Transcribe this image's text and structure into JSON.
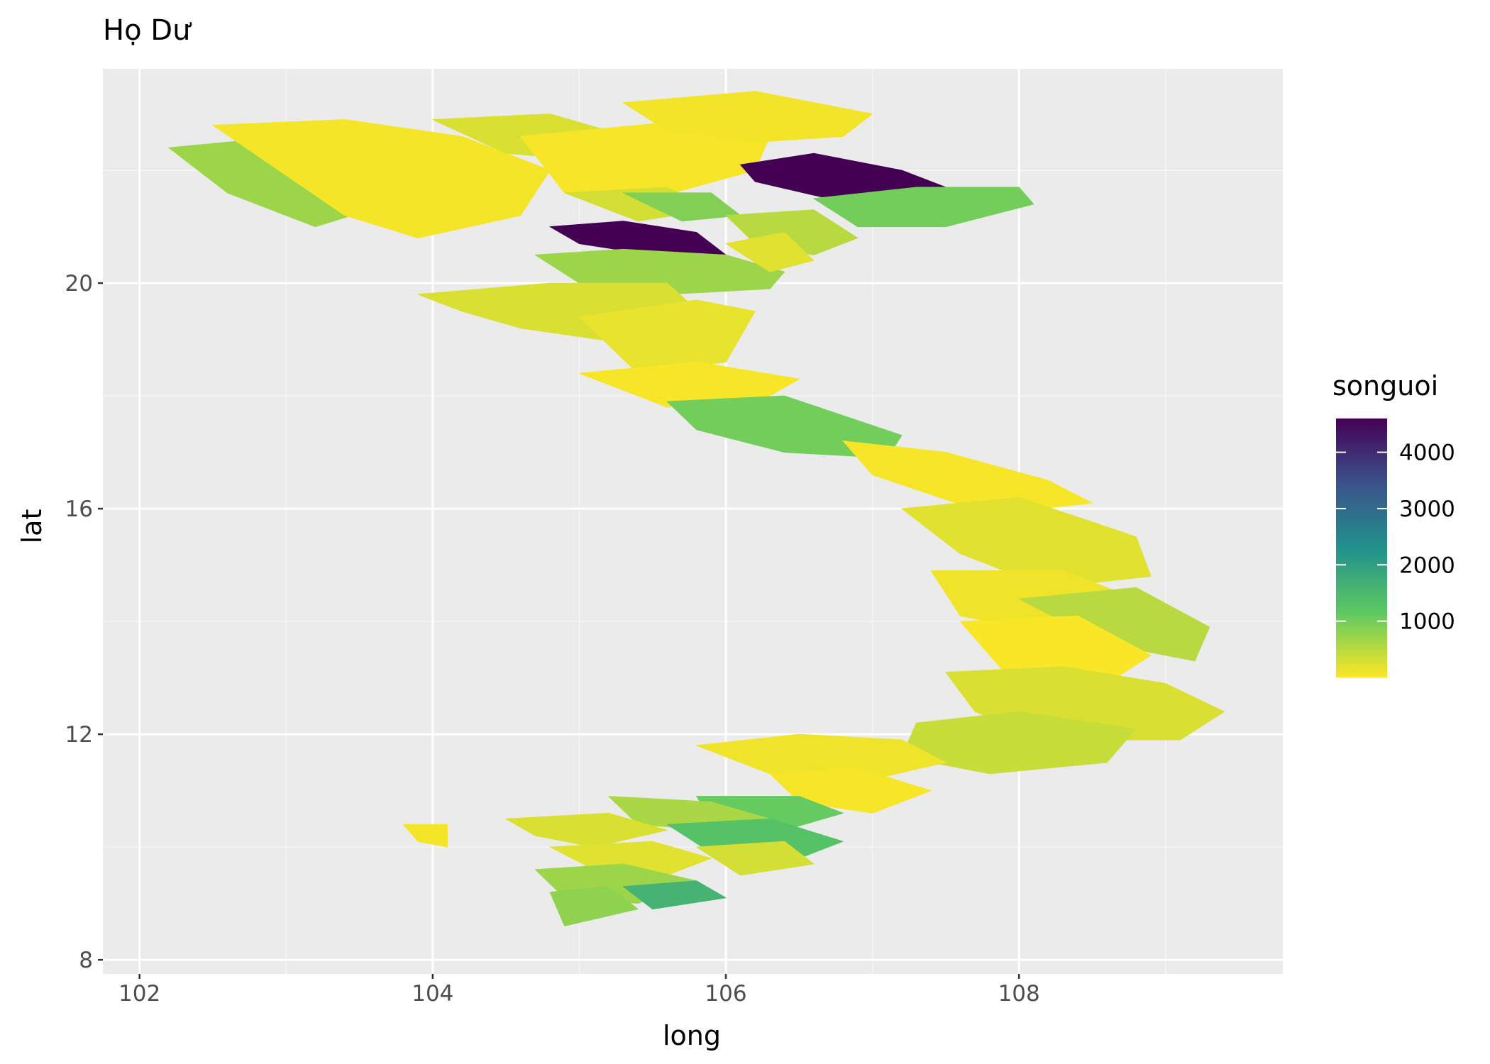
{
  "title": "Họ Dư",
  "xlabel": "long",
  "ylabel": "lat",
  "x_ticks": [
    {
      "value": 102,
      "label": "102"
    },
    {
      "value": 104,
      "label": "104"
    },
    {
      "value": 106,
      "label": "106"
    },
    {
      "value": 108,
      "label": "108"
    }
  ],
  "y_ticks": [
    {
      "value": 8,
      "label": "8"
    },
    {
      "value": 12,
      "label": "12"
    },
    {
      "value": 16,
      "label": "16"
    },
    {
      "value": 20,
      "label": "20"
    }
  ],
  "legend": {
    "title": "songuoi",
    "ticks": [
      {
        "value": 4000,
        "label": "4000"
      },
      {
        "value": 3000,
        "label": "3000"
      },
      {
        "value": 2000,
        "label": "2000"
      },
      {
        "value": 1000,
        "label": "1000"
      }
    ],
    "range": [
      0,
      4600
    ],
    "palette": [
      "#fde725",
      "#5ec962",
      "#21918c",
      "#3b528b",
      "#440154"
    ]
  },
  "colors": {
    "panel_background": "#ebebeb",
    "grid_major": "#ffffff",
    "grid_minor": "#f5f5f5",
    "high": "#440154",
    "low": "#fde725"
  },
  "chart_data": {
    "type": "choropleth",
    "title": "Họ Dư",
    "xlabel": "long",
    "ylabel": "lat",
    "xlim": [
      101.75,
      109.8
    ],
    "ylim": [
      7.75,
      23.8
    ],
    "fill_variable": "songuoi",
    "regions": [
      {
        "lon": [
          102.2,
          103.0,
          103.6,
          104.1,
          103.7,
          103.2,
          102.6
        ],
        "lat": [
          22.4,
          22.6,
          22.5,
          22.0,
          21.4,
          21.0,
          21.6
        ],
        "value": 700
      },
      {
        "lon": [
          102.5,
          103.4,
          104.2,
          104.8,
          104.6,
          103.9,
          103.4
        ],
        "lat": [
          22.8,
          22.9,
          22.6,
          22.0,
          21.2,
          20.8,
          21.2
        ],
        "value": 60
      },
      {
        "lon": [
          104.0,
          104.8,
          105.2,
          105.0,
          104.5
        ],
        "lat": [
          22.9,
          23.0,
          22.7,
          22.2,
          22.3
        ],
        "value": 250
      },
      {
        "lon": [
          104.6,
          105.4,
          105.8,
          106.3,
          106.2,
          105.5,
          104.9
        ],
        "lat": [
          22.6,
          22.8,
          22.9,
          22.6,
          22.0,
          21.5,
          21.6
        ],
        "value": 40
      },
      {
        "lon": [
          105.3,
          106.2,
          107.0,
          106.8,
          106.2,
          105.6
        ],
        "lat": [
          23.2,
          23.4,
          23.0,
          22.6,
          22.5,
          22.7
        ],
        "value": 80
      },
      {
        "lon": [
          104.9,
          105.6,
          105.9,
          105.4
        ],
        "lat": [
          21.6,
          21.7,
          21.3,
          21.1
        ],
        "value": 300
      },
      {
        "lon": [
          105.3,
          105.9,
          106.1,
          105.7
        ],
        "lat": [
          21.6,
          21.6,
          21.2,
          21.1
        ],
        "value": 900
      },
      {
        "lon": [
          106.1,
          106.6,
          107.2,
          107.6,
          107.1,
          106.7,
          106.2
        ],
        "lat": [
          22.1,
          22.3,
          22.0,
          21.6,
          21.4,
          21.5,
          21.8
        ],
        "value": 4600
      },
      {
        "lon": [
          106.6,
          107.3,
          108.0,
          108.1,
          107.5,
          106.9
        ],
        "lat": [
          21.5,
          21.7,
          21.7,
          21.4,
          21.0,
          21.0
        ],
        "value": 1000
      },
      {
        "lon": [
          104.8,
          105.3,
          105.8,
          106.0,
          105.5,
          105.0
        ],
        "lat": [
          21.0,
          21.1,
          20.9,
          20.5,
          20.5,
          20.7
        ],
        "value": 4600
      },
      {
        "lon": [
          104.7,
          105.3,
          106.0,
          106.4,
          106.3,
          105.6,
          105.0
        ],
        "lat": [
          20.5,
          20.6,
          20.5,
          20.2,
          19.9,
          19.8,
          20.0
        ],
        "value": 700
      },
      {
        "lon": [
          106.0,
          106.6,
          106.9,
          106.6,
          106.2
        ],
        "lat": [
          21.2,
          21.3,
          20.8,
          20.5,
          20.7
        ],
        "value": 500
      },
      {
        "lon": [
          106.0,
          106.4,
          106.6,
          106.3
        ],
        "lat": [
          20.7,
          20.9,
          20.4,
          20.2
        ],
        "value": 200
      },
      {
        "lon": [
          103.9,
          104.8,
          105.6,
          105.9,
          105.4,
          104.6,
          104.2
        ],
        "lat": [
          19.8,
          20.0,
          20.0,
          19.3,
          18.9,
          19.2,
          19.5
        ],
        "value": 250
      },
      {
        "lon": [
          105.0,
          105.8,
          106.2,
          106.0,
          105.4
        ],
        "lat": [
          19.4,
          19.7,
          19.5,
          18.6,
          18.4
        ],
        "value": 150
      },
      {
        "lon": [
          105.0,
          105.8,
          106.5,
          106.3,
          105.6
        ],
        "lat": [
          18.4,
          18.6,
          18.3,
          18.0,
          17.8
        ],
        "value": 40
      },
      {
        "lon": [
          105.6,
          106.4,
          107.2,
          107.1,
          106.4,
          105.8
        ],
        "lat": [
          17.9,
          18.0,
          17.3,
          16.9,
          17.0,
          17.4
        ],
        "value": 1000
      },
      {
        "lon": [
          106.8,
          107.5,
          108.2,
          108.5,
          107.8,
          107.0
        ],
        "lat": [
          17.2,
          17.0,
          16.5,
          16.1,
          15.9,
          16.6
        ],
        "value": 40
      },
      {
        "lon": [
          107.2,
          108.0,
          108.8,
          108.9,
          108.2,
          107.6
        ],
        "lat": [
          16.0,
          16.2,
          15.5,
          14.8,
          14.6,
          15.2
        ],
        "value": 200
      },
      {
        "lon": [
          107.4,
          108.3,
          109.0,
          108.9,
          108.2,
          107.6
        ],
        "lat": [
          14.9,
          14.9,
          14.2,
          13.6,
          13.8,
          14.1
        ],
        "value": 100
      },
      {
        "lon": [
          108.0,
          108.8,
          109.3,
          109.2,
          108.6
        ],
        "lat": [
          14.4,
          14.6,
          13.9,
          13.3,
          13.6
        ],
        "value": 500
      },
      {
        "lon": [
          107.6,
          108.4,
          108.9,
          108.6,
          107.9
        ],
        "lat": [
          14.0,
          14.1,
          13.4,
          12.9,
          13.1
        ],
        "value": 30
      },
      {
        "lon": [
          107.5,
          108.3,
          109.0,
          109.4,
          109.1,
          108.2,
          107.7
        ],
        "lat": [
          13.1,
          13.2,
          12.9,
          12.4,
          11.9,
          11.9,
          12.4
        ],
        "value": 250
      },
      {
        "lon": [
          107.3,
          108.0,
          108.8,
          108.6,
          107.8,
          107.2
        ],
        "lat": [
          12.2,
          12.4,
          12.1,
          11.5,
          11.3,
          11.6
        ],
        "value": 400
      },
      {
        "lon": [
          105.8,
          106.5,
          107.2,
          107.5,
          107.0,
          106.3
        ],
        "lat": [
          11.8,
          12.0,
          11.9,
          11.5,
          11.2,
          11.3
        ],
        "value": 100
      },
      {
        "lon": [
          106.3,
          106.9,
          107.4,
          107.0,
          106.5
        ],
        "lat": [
          11.3,
          11.4,
          11.0,
          10.6,
          10.8
        ],
        "value": 40
      },
      {
        "lon": [
          105.8,
          106.5,
          106.8,
          106.4,
          105.9
        ],
        "lat": [
          10.9,
          10.9,
          10.6,
          10.3,
          10.5
        ],
        "value": 1100
      },
      {
        "lon": [
          105.2,
          105.9,
          106.3,
          105.9,
          105.4
        ],
        "lat": [
          10.9,
          10.8,
          10.5,
          10.3,
          10.4
        ],
        "value": 600
      },
      {
        "lon": [
          104.5,
          105.2,
          105.6,
          105.1,
          104.7
        ],
        "lat": [
          10.5,
          10.6,
          10.3,
          10.0,
          10.2
        ],
        "value": 250
      },
      {
        "lon": [
          105.6,
          106.3,
          106.8,
          106.5,
          105.9
        ],
        "lat": [
          10.4,
          10.5,
          10.1,
          9.8,
          9.9
        ],
        "value": 1300
      },
      {
        "lon": [
          104.8,
          105.5,
          105.9,
          105.6,
          105.1
        ],
        "lat": [
          10.0,
          10.1,
          9.8,
          9.5,
          9.6
        ],
        "value": 200
      },
      {
        "lon": [
          104.7,
          105.3,
          105.8,
          105.4,
          104.9
        ],
        "lat": [
          9.6,
          9.7,
          9.4,
          9.0,
          9.1
        ],
        "value": 700
      },
      {
        "lon": [
          104.8,
          105.2,
          105.4,
          104.9
        ],
        "lat": [
          9.2,
          9.3,
          8.9,
          8.6
        ],
        "value": 800
      },
      {
        "lon": [
          105.3,
          105.8,
          106.0,
          105.5
        ],
        "lat": [
          9.3,
          9.4,
          9.1,
          8.9
        ],
        "value": 1600
      },
      {
        "lon": [
          105.8,
          106.4,
          106.6,
          106.1
        ],
        "lat": [
          10.0,
          10.1,
          9.7,
          9.5
        ],
        "value": 300
      },
      {
        "lon": [
          103.8,
          104.1,
          104.1,
          103.9
        ],
        "lat": [
          10.4,
          10.4,
          10.0,
          10.1
        ],
        "value": 60
      }
    ]
  }
}
